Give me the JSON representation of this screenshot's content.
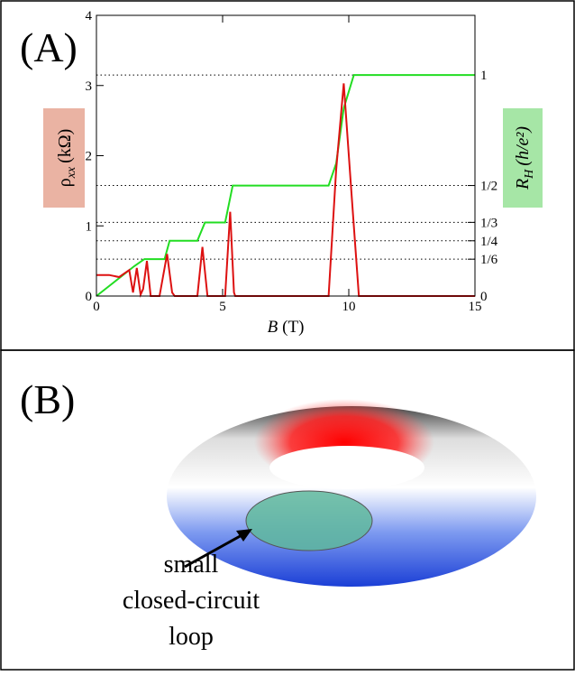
{
  "chart_data": {
    "type": "line",
    "panel_label": "(A)",
    "xlabel": {
      "symbol": "B",
      "unit": "(T)"
    },
    "ylabel": {
      "symbol": "ρ",
      "subscript": "xx",
      "unit": "(kΩ)"
    },
    "y2label": {
      "symbol": "R",
      "subscript": "H",
      "unit": "(h/e²)"
    },
    "xlim": [
      0,
      15
    ],
    "xticks": [
      0,
      5,
      10,
      15
    ],
    "ylim": [
      0,
      4
    ],
    "yticks": [
      0,
      1,
      2,
      3,
      4
    ],
    "y2lim": [
      0,
      1.27
    ],
    "y2ticks": [
      0,
      {
        "value": 0.1667,
        "label": "1/6"
      },
      {
        "value": 0.25,
        "label": "1/4"
      },
      {
        "value": 0.3333,
        "label": "1/3"
      },
      {
        "value": 0.5,
        "label": "1/2"
      },
      1
    ],
    "y2grid": true,
    "series": [
      {
        "color": "#22dd22",
        "axis": "y2",
        "x": [
          0,
          0.5,
          1,
          1.5,
          1.9,
          2.7,
          2.9,
          4.0,
          4.3,
          5.1,
          5.4,
          9.2,
          9.5,
          9.8,
          10.2,
          15
        ],
        "values": [
          0,
          0.045,
          0.09,
          0.135,
          0.167,
          0.167,
          0.25,
          0.25,
          0.333,
          0.333,
          0.5,
          0.5,
          0.6,
          0.85,
          1,
          1
        ]
      },
      {
        "color": "#dd1111",
        "x": [
          0,
          0.5,
          0.9,
          1.1,
          1.3,
          1.45,
          1.6,
          1.75,
          1.85,
          2.0,
          2.15,
          2.5,
          2.8,
          3.0,
          3.1,
          4.0,
          4.2,
          4.4,
          4.5,
          5.1,
          5.3,
          5.45,
          5.5,
          9.2,
          9.5,
          9.8,
          10.1,
          10.4,
          15
        ],
        "values": [
          0.3,
          0.3,
          0.27,
          0.32,
          0.37,
          0.05,
          0.4,
          0.02,
          0.1,
          0.5,
          0,
          0,
          0.6,
          0.05,
          0,
          0,
          0.7,
          0,
          0,
          0,
          1.2,
          0.05,
          0,
          0,
          1.8,
          3.03,
          1.5,
          0,
          0
        ]
      }
    ]
  },
  "panel_b": {
    "label": "(B)",
    "annotation": [
      "small",
      "closed-circuit",
      "loop"
    ]
  }
}
